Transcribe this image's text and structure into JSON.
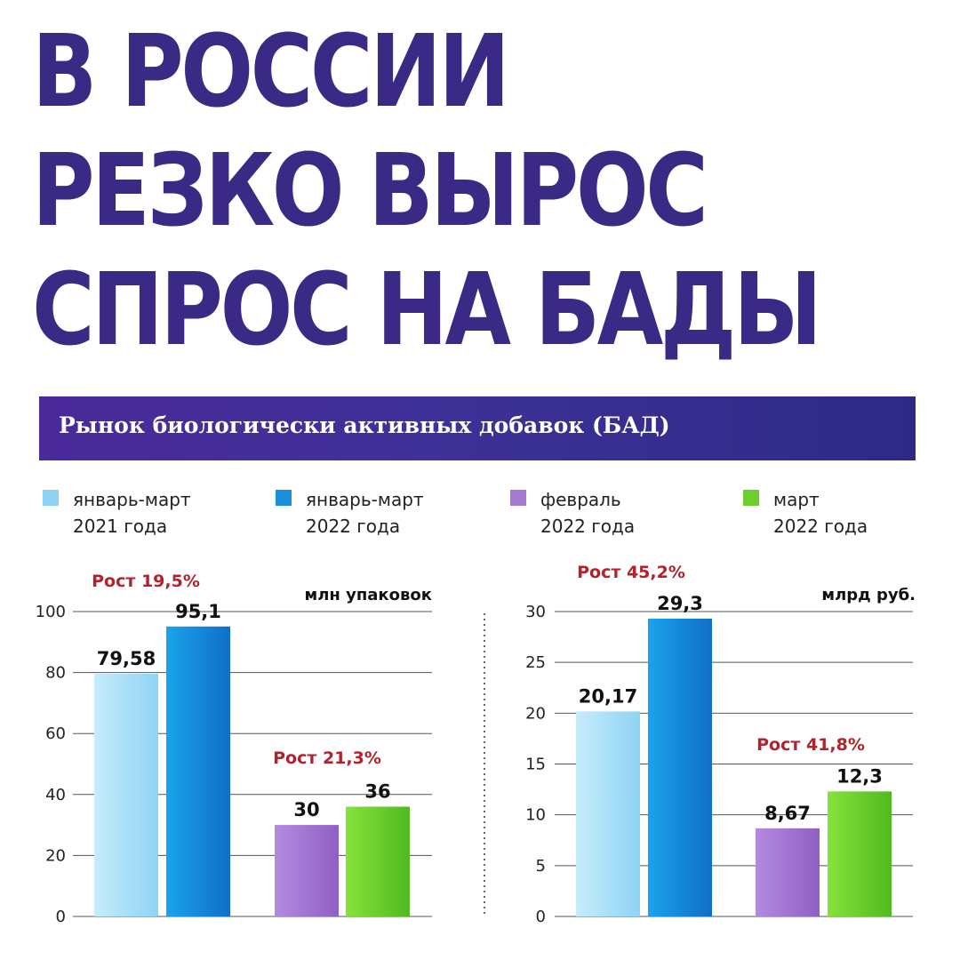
{
  "headline": {
    "line1": "В РОССИИ",
    "line2": "РЕЗКО ВЫРОС",
    "line3": "СПРОС НА БАДЫ"
  },
  "banner": {
    "title": "Рынок биологически активных добавок (БАД)"
  },
  "legend": [
    {
      "label": "январь-март\n2021 года",
      "color": "#8fd3f4"
    },
    {
      "label": "январь-март\n2022 года",
      "color": "#1b8fdc"
    },
    {
      "label": "февраль\n2022 года",
      "color": "#a57bd1"
    },
    {
      "label": "март\n2022 года",
      "color": "#6ccf2e"
    }
  ],
  "chart_data": [
    {
      "type": "bar",
      "unit": "млн упаковок",
      "ylim": [
        0,
        100
      ],
      "yticks": [
        0,
        20,
        40,
        60,
        80,
        100
      ],
      "categories": [
        "январь-март 2021 года",
        "январь-март 2022 года",
        "февраль 2022 года",
        "март 2022 года"
      ],
      "values": [
        79.58,
        95.1,
        30,
        36
      ],
      "value_labels": [
        "79,58",
        "95,1",
        "30",
        "36"
      ],
      "annotations": [
        "Рост 19,5%",
        "Рост 21,3%"
      ]
    },
    {
      "type": "bar",
      "unit": "млрд руб.",
      "ylim": [
        0,
        30
      ],
      "yticks": [
        0,
        5,
        10,
        15,
        20,
        25,
        30
      ],
      "categories": [
        "январь-март 2021 года",
        "январь-март 2022 года",
        "февраль 2022 года",
        "март 2022 года"
      ],
      "values": [
        20.17,
        29.3,
        8.67,
        12.3
      ],
      "value_labels": [
        "20,17",
        "29,3",
        "8,67",
        "12,3"
      ],
      "annotations": [
        "Рост 45,2%",
        "Рост 41,8%"
      ]
    }
  ]
}
